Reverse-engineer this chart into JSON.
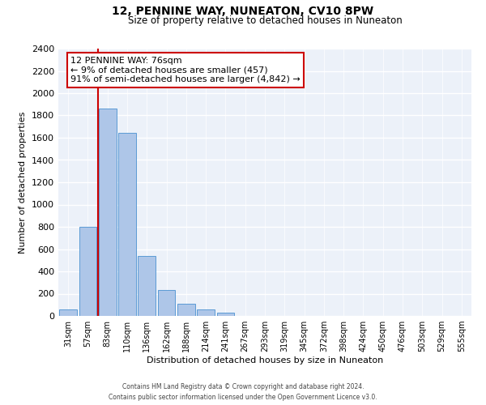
{
  "title": "12, PENNINE WAY, NUNEATON, CV10 8PW",
  "subtitle": "Size of property relative to detached houses in Nuneaton",
  "xlabel": "Distribution of detached houses by size in Nuneaton",
  "ylabel": "Number of detached properties",
  "bar_labels": [
    "31sqm",
    "57sqm",
    "83sqm",
    "110sqm",
    "136sqm",
    "162sqm",
    "188sqm",
    "214sqm",
    "241sqm",
    "267sqm",
    "293sqm",
    "319sqm",
    "345sqm",
    "372sqm",
    "398sqm",
    "424sqm",
    "450sqm",
    "476sqm",
    "503sqm",
    "529sqm",
    "555sqm"
  ],
  "bar_values": [
    55,
    800,
    1860,
    1640,
    540,
    235,
    110,
    55,
    30,
    0,
    0,
    0,
    0,
    0,
    0,
    0,
    0,
    0,
    0,
    0,
    0
  ],
  "bar_color": "#aec6e8",
  "bar_edge_color": "#5b9bd5",
  "annotation_text_line1": "12 PENNINE WAY: 76sqm",
  "annotation_text_line2": "← 9% of detached houses are smaller (457)",
  "annotation_text_line3": "91% of semi-detached houses are larger (4,842) →",
  "annotation_box_color": "#ffffff",
  "annotation_box_edge": "#cc0000",
  "property_line_color": "#cc0000",
  "ylim": [
    0,
    2400
  ],
  "yticks": [
    0,
    200,
    400,
    600,
    800,
    1000,
    1200,
    1400,
    1600,
    1800,
    2000,
    2200,
    2400
  ],
  "bg_color": "#ecf1f9",
  "footer_line1": "Contains HM Land Registry data © Crown copyright and database right 2024.",
  "footer_line2": "Contains public sector information licensed under the Open Government Licence v3.0."
}
